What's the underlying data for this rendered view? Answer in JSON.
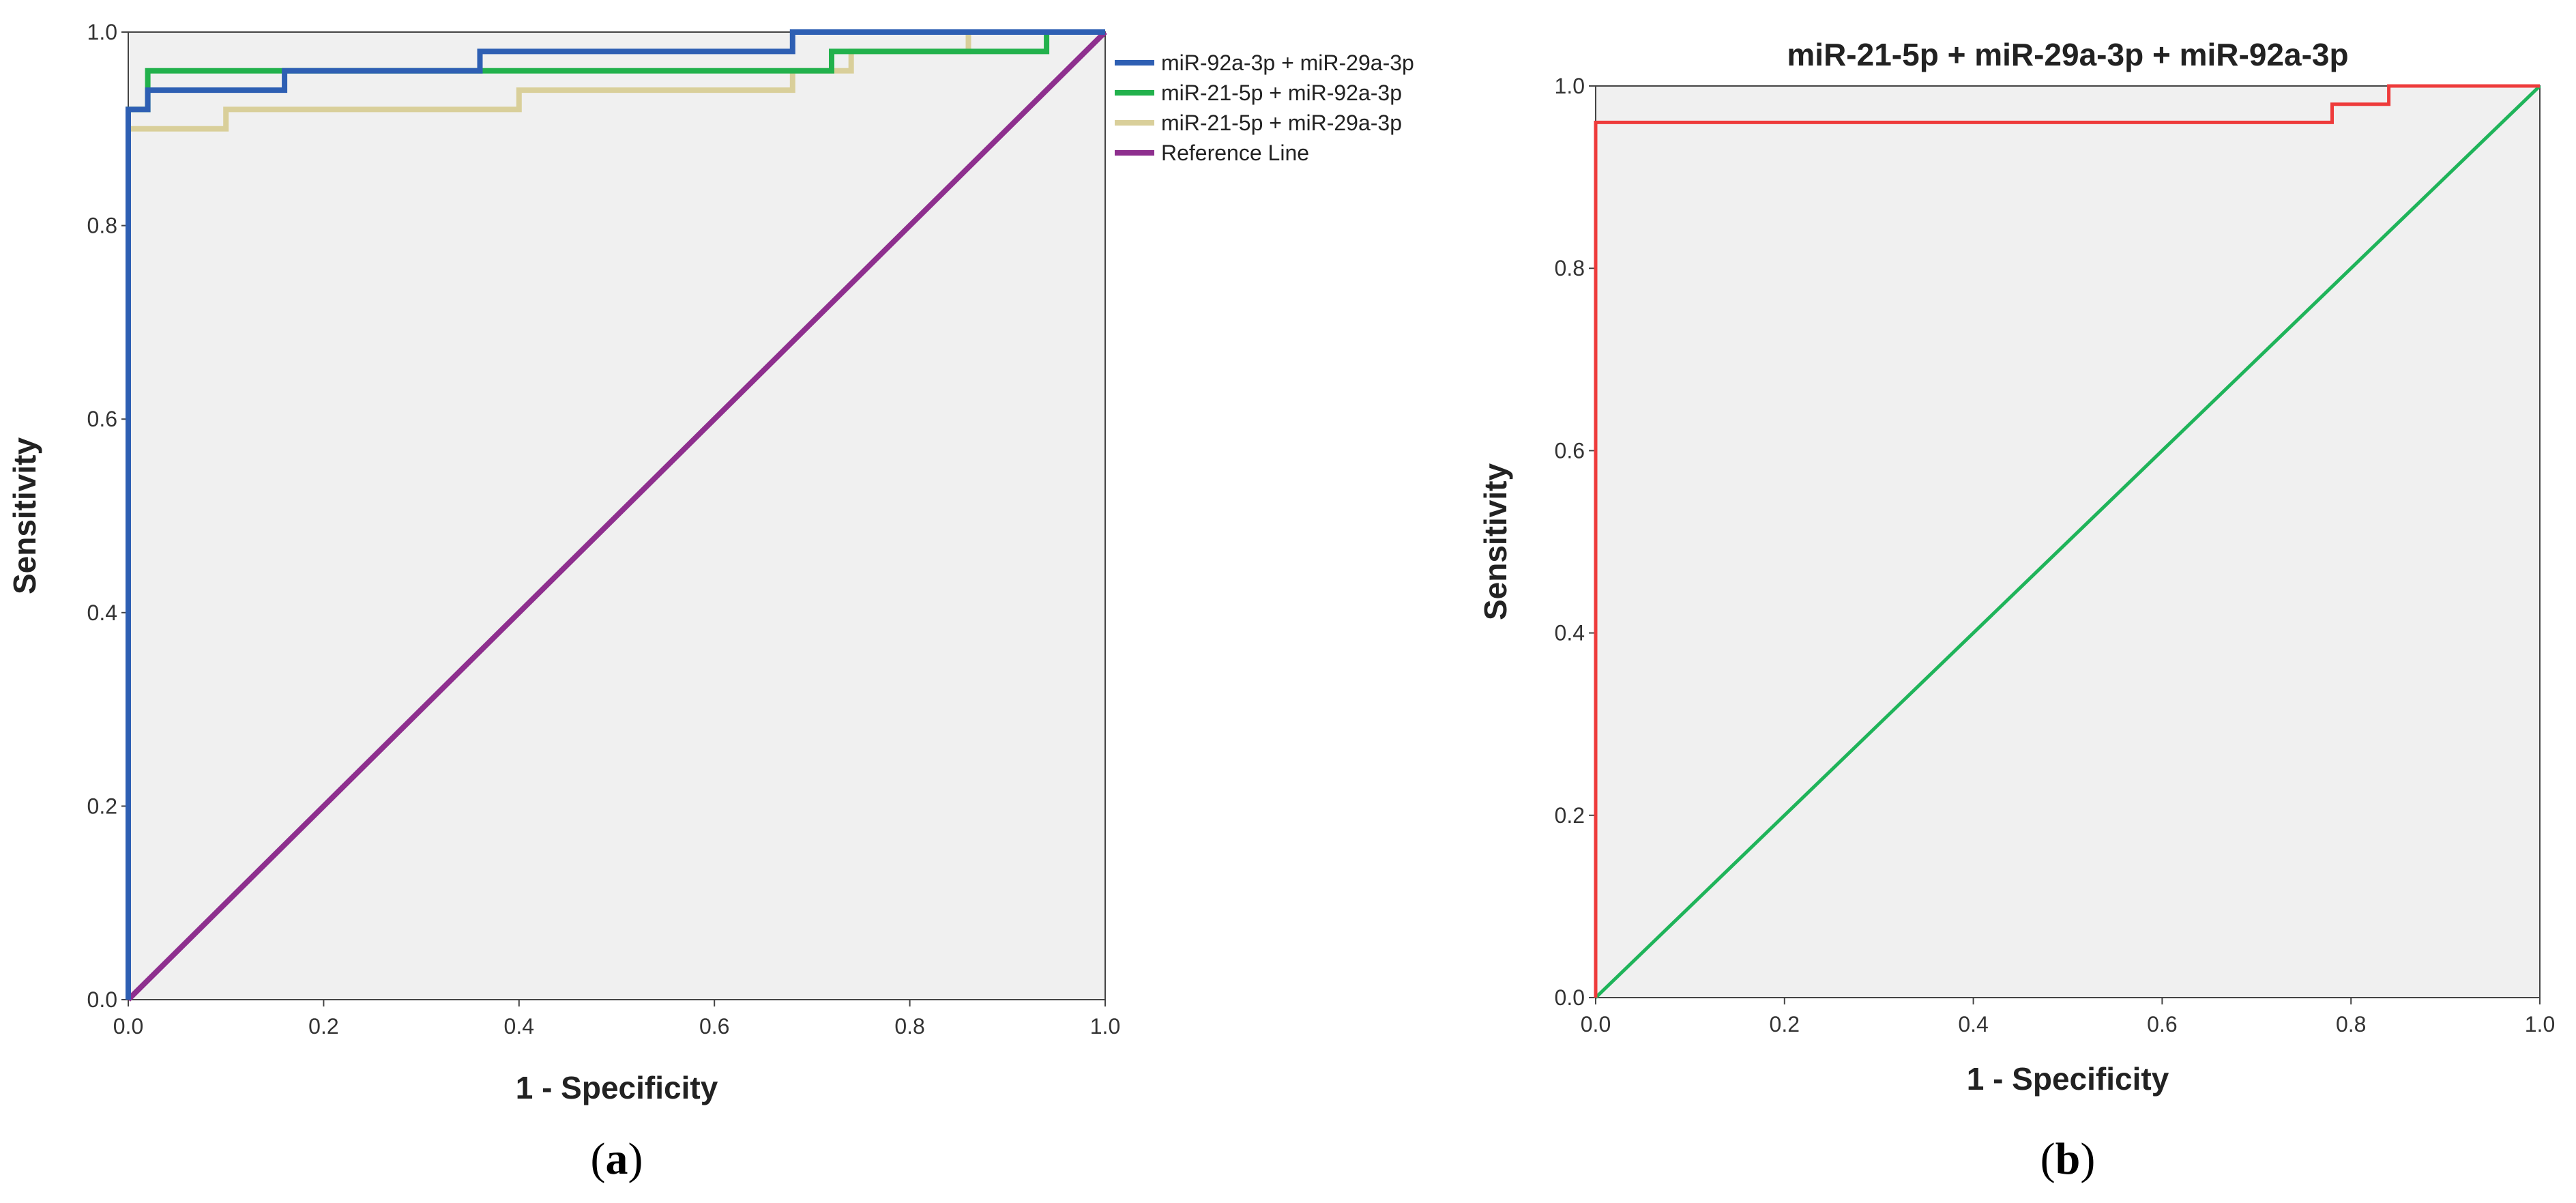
{
  "chart_data": [
    {
      "type": "line",
      "caption": {
        "open": "(",
        "letter": "a",
        "close": ")"
      },
      "title": "",
      "xlabel": "1 - Specificity",
      "ylabel": "Sensitivity",
      "xlim": [
        0,
        1
      ],
      "ylim": [
        0,
        1
      ],
      "xticks": [
        "0.0",
        "0.2",
        "0.4",
        "0.6",
        "0.8",
        "1.0"
      ],
      "yticks": [
        "0.0",
        "0.2",
        "0.4",
        "0.6",
        "0.8",
        "1.0"
      ],
      "grid": false,
      "background": "#f0f0f0",
      "legend_position": "right",
      "series": [
        {
          "name": "miR-92a-3p + miR-29a-3p",
          "color": "#2e5fb3",
          "x": [
            0,
            0,
            0.02,
            0.02,
            0.16,
            0.16,
            0.36,
            0.36,
            0.68,
            0.68,
            1.0
          ],
          "y": [
            0,
            0.92,
            0.92,
            0.94,
            0.94,
            0.96,
            0.96,
            0.98,
            0.98,
            1.0,
            1.0
          ]
        },
        {
          "name": "miR-21-5p + miR-92a-3p",
          "color": "#22b14c",
          "x": [
            0,
            0,
            0.02,
            0.02,
            0.72,
            0.72,
            0.94,
            0.94,
            1.0
          ],
          "y": [
            0,
            0.92,
            0.92,
            0.96,
            0.96,
            0.98,
            0.98,
            1.0,
            1.0
          ]
        },
        {
          "name": "miR-21-5p + miR-29a-3p",
          "color": "#d9cf9a",
          "x": [
            0,
            0,
            0.1,
            0.1,
            0.4,
            0.4,
            0.68,
            0.68,
            0.74,
            0.74,
            0.86,
            0.86,
            1.0
          ],
          "y": [
            0,
            0.9,
            0.9,
            0.92,
            0.92,
            0.94,
            0.94,
            0.96,
            0.96,
            0.98,
            0.98,
            1.0,
            1.0
          ]
        },
        {
          "name": "Reference Line",
          "color": "#8e2f8e",
          "x": [
            0,
            1
          ],
          "y": [
            0,
            1
          ]
        }
      ]
    },
    {
      "type": "line",
      "caption": {
        "open": "(",
        "letter": "b",
        "close": ")"
      },
      "title": "miR-21-5p + miR-29a-3p + miR-92a-3p",
      "xlabel": "1 - Specificity",
      "ylabel": "Sensitivity",
      "xlim": [
        0,
        1
      ],
      "ylim": [
        0,
        1
      ],
      "xticks": [
        "0.0",
        "0.2",
        "0.4",
        "0.6",
        "0.8",
        "1.0"
      ],
      "yticks": [
        "0.0",
        "0.2",
        "0.4",
        "0.6",
        "0.8",
        "1.0"
      ],
      "grid": false,
      "background": "#f0f0f0",
      "series": [
        {
          "color": "#ee3b3b",
          "x": [
            0,
            0,
            0.78,
            0.78,
            0.84,
            0.84,
            1.0
          ],
          "y": [
            0,
            0.96,
            0.96,
            0.98,
            0.98,
            1.0,
            1.0
          ]
        },
        {
          "color": "#1fb45a",
          "x": [
            0,
            1
          ],
          "y": [
            0,
            1
          ]
        }
      ]
    }
  ]
}
